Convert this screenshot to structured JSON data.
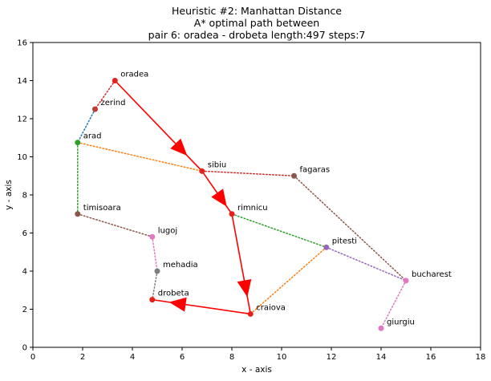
{
  "chart_data": {
    "type": "scatter",
    "title_lines": [
      "Heuristic #2: Manhattan Distance",
      "A* optimal path between",
      "pair 6: oradea - drobeta length:497 steps:7"
    ],
    "xlabel": "x - axis",
    "ylabel": "y - axis",
    "xlim": [
      0,
      18
    ],
    "ylim": [
      0,
      16
    ],
    "xticks": [
      0,
      2,
      4,
      6,
      8,
      10,
      12,
      14,
      16,
      18
    ],
    "yticks": [
      0,
      2,
      4,
      6,
      8,
      10,
      12,
      14,
      16
    ],
    "grid": false,
    "nodes": [
      {
        "name": "oradea",
        "x": 3.3,
        "y": 14.0,
        "color": "#e8201a"
      },
      {
        "name": "zerind",
        "x": 2.5,
        "y": 12.5,
        "color": "#c23b36"
      },
      {
        "name": "arad",
        "x": 1.8,
        "y": 10.75,
        "color": "#2ca02c"
      },
      {
        "name": "sibiu",
        "x": 6.8,
        "y": 9.25,
        "color": "#e8201a"
      },
      {
        "name": "fagaras",
        "x": 10.5,
        "y": 9.0,
        "color": "#8c564b"
      },
      {
        "name": "timisoara",
        "x": 1.8,
        "y": 7.0,
        "color": "#8c564b"
      },
      {
        "name": "rimnicu",
        "x": 8.0,
        "y": 7.0,
        "color": "#e8201a"
      },
      {
        "name": "lugoj",
        "x": 4.8,
        "y": 5.8,
        "color": "#e377c2"
      },
      {
        "name": "pitesti",
        "x": 11.8,
        "y": 5.25,
        "color": "#9467bd"
      },
      {
        "name": "mehadia",
        "x": 5.0,
        "y": 4.0,
        "color": "#7f7f7f"
      },
      {
        "name": "bucharest",
        "x": 15.0,
        "y": 3.5,
        "color": "#e377c2"
      },
      {
        "name": "drobeta",
        "x": 4.8,
        "y": 2.5,
        "color": "#e8201a"
      },
      {
        "name": "craiova",
        "x": 8.75,
        "y": 1.75,
        "color": "#e8201a"
      },
      {
        "name": "giurgiu",
        "x": 14.0,
        "y": 1.0,
        "color": "#e377c2"
      }
    ],
    "edges": [
      {
        "from": "oradea",
        "to": "zerind",
        "color": "#d62728"
      },
      {
        "from": "zerind",
        "to": "arad",
        "color": "#1f77b4"
      },
      {
        "from": "arad",
        "to": "sibiu",
        "color": "#ff7f0e"
      },
      {
        "from": "arad",
        "to": "timisoara",
        "color": "#2ca02c"
      },
      {
        "from": "timisoara",
        "to": "lugoj",
        "color": "#8c564b"
      },
      {
        "from": "lugoj",
        "to": "mehadia",
        "color": "#e377c2"
      },
      {
        "from": "mehadia",
        "to": "drobeta",
        "color": "#7f7f7f"
      },
      {
        "from": "sibiu",
        "to": "fagaras",
        "color": "#d62728"
      },
      {
        "from": "fagaras",
        "to": "bucharest",
        "color": "#8c564b"
      },
      {
        "from": "rimnicu",
        "to": "pitesti",
        "color": "#2ca02c"
      },
      {
        "from": "pitesti",
        "to": "bucharest",
        "color": "#9467bd"
      },
      {
        "from": "pitesti",
        "to": "craiova",
        "color": "#ff7f0e"
      },
      {
        "from": "bucharest",
        "to": "giurgiu",
        "color": "#e377c2"
      }
    ],
    "path": [
      "oradea",
      "sibiu",
      "rimnicu",
      "craiova",
      "drobeta"
    ],
    "path_color": "#ff0000"
  }
}
